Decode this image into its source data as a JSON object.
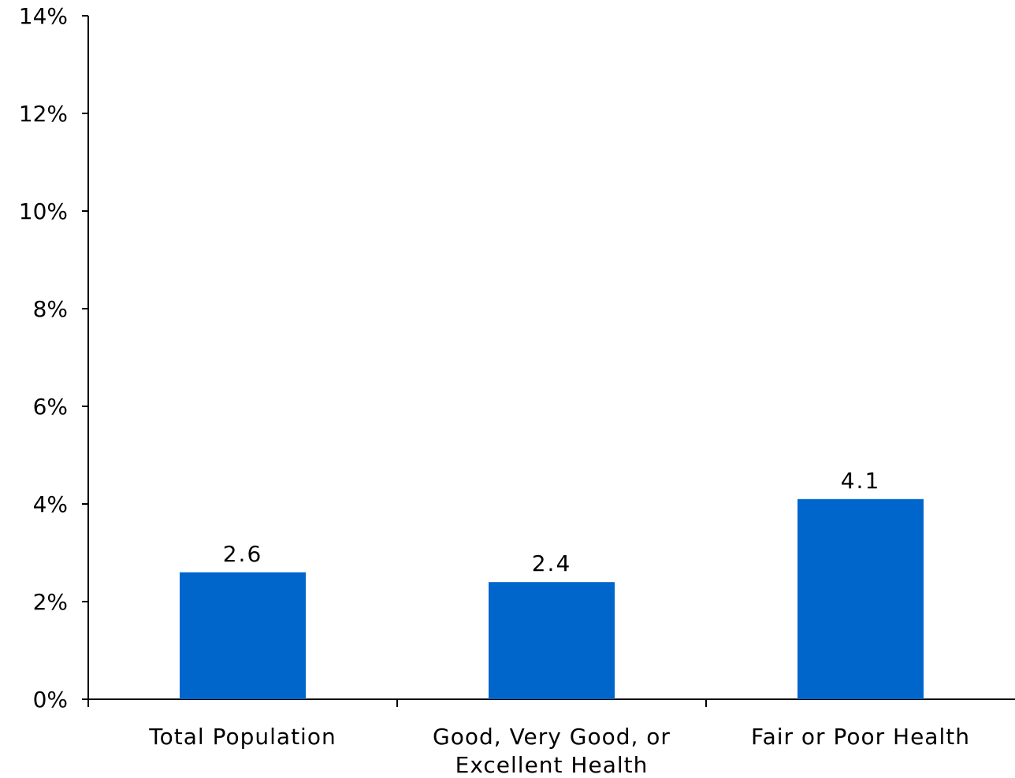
{
  "colors": {
    "bar": "#0066CC",
    "axis": "#000000"
  },
  "chart_data": {
    "type": "bar",
    "categories": [
      [
        "Total Population"
      ],
      [
        "Good, Very Good, or",
        "Excellent Health"
      ],
      [
        "Fair or Poor Health"
      ]
    ],
    "values": [
      2.6,
      2.4,
      4.1
    ],
    "data_labels": [
      "2.6",
      "2.4",
      "4.1"
    ],
    "ylim": [
      0,
      14
    ],
    "yticks": [
      0,
      2,
      4,
      6,
      8,
      10,
      12,
      14
    ],
    "ytick_labels": [
      "0%",
      "2%",
      "4%",
      "6%",
      "8%",
      "10%",
      "12%",
      "14%"
    ],
    "grid": false,
    "legend": "none"
  }
}
